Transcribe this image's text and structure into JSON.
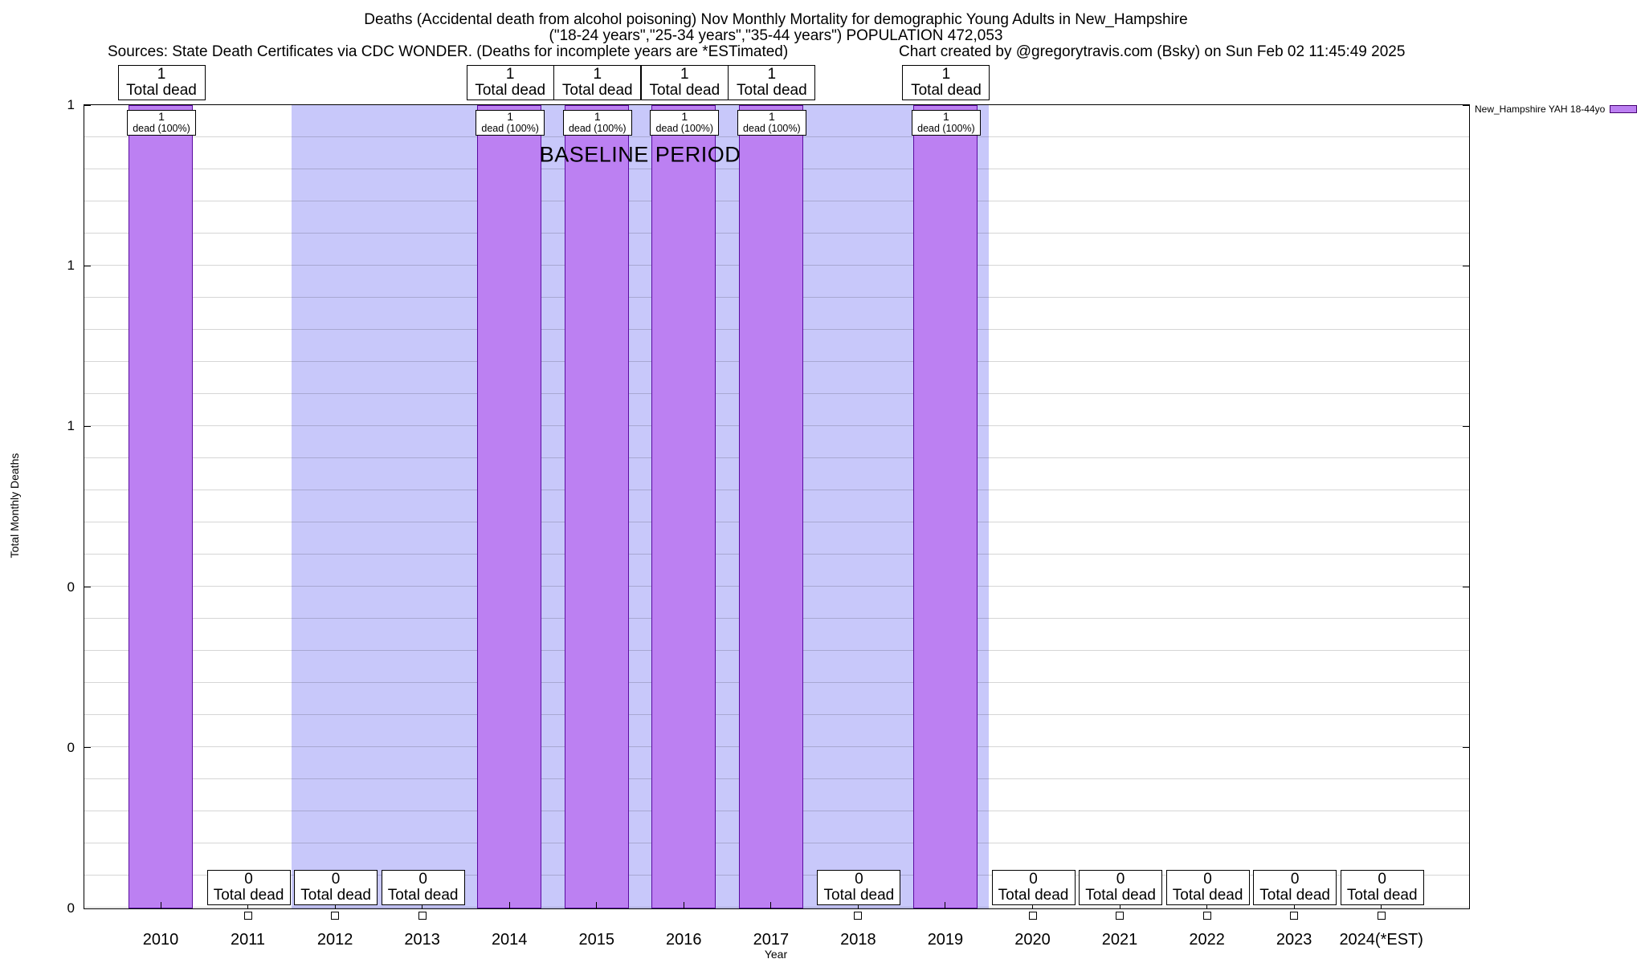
{
  "chart_data": {
    "type": "bar",
    "title": "Deaths (Accidental death from alcohol poisoning) Nov Monthly Mortality for demographic Young Adults in New_Hampshire",
    "subtitle": "(\"18-24 years\",\"25-34 years\",\"35-44 years\") POPULATION 472,053",
    "note_left": "Sources: State Death Certificates via CDC WONDER. (Deaths for incomplete years are *ESTimated)",
    "note_right": "Chart created by @gregorytravis.com (Bsky) on Sun Feb 02 11:45:49 2025",
    "xlabel": "Year",
    "ylabel": "Total Monthly Deaths",
    "ylim": [
      0,
      1
    ],
    "y_tick_labels_top_to_bottom": [
      "1",
      "1",
      "1",
      "0",
      "0",
      "0"
    ],
    "grid": "horizontal",
    "legend_position": "top-right-outside",
    "categories": [
      "2010",
      "2011",
      "2012",
      "2013",
      "2014",
      "2015",
      "2016",
      "2017",
      "2018",
      "2019",
      "2020",
      "2021",
      "2022",
      "2023",
      "2024(*EST)"
    ],
    "series": [
      {
        "name": "New_Hampshire YAH 18-44yo",
        "values": [
          1,
          0,
          0,
          0,
          1,
          1,
          1,
          1,
          0,
          1,
          0,
          0,
          0,
          0,
          0
        ]
      }
    ],
    "bar_value_annotation": "Total dead",
    "bar_inner_annotation": "dead (100%)",
    "baseline_band": {
      "label": "BASELINE PERIOD",
      "from_category": "2012",
      "to_category": "2019",
      "color": "#c8c8fa"
    },
    "colors": {
      "bar_fill": "#bc80f2",
      "bar_border": "#5a0aa0",
      "band": "#c8c8fa"
    }
  }
}
